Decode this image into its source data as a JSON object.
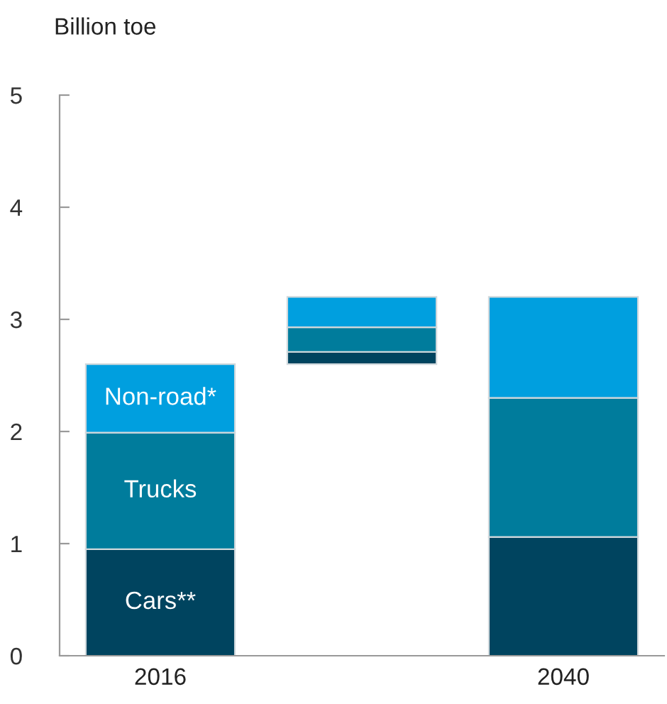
{
  "chart_data": {
    "type": "bar",
    "ylabel": "Billion toe",
    "categories": [
      "2016",
      null,
      "2040"
    ],
    "series": [
      {
        "name": "Cars**",
        "color": "#00445f",
        "base": [
          0,
          2.6,
          0
        ],
        "values": [
          0.95,
          0.11,
          1.06
        ]
      },
      {
        "name": "Trucks",
        "color": "#007c9c",
        "base": [
          0.95,
          2.71,
          1.06
        ],
        "values": [
          1.04,
          0.22,
          1.24
        ]
      },
      {
        "name": "Non-road*",
        "color": "#009fdf",
        "base": [
          1.99,
          2.93,
          2.3
        ],
        "values": [
          0.61,
          0.27,
          0.9
        ]
      }
    ],
    "ylim": [
      0,
      5
    ],
    "yticks": [
      0,
      1,
      2,
      3,
      4,
      5
    ],
    "grid": false,
    "legend": false
  }
}
